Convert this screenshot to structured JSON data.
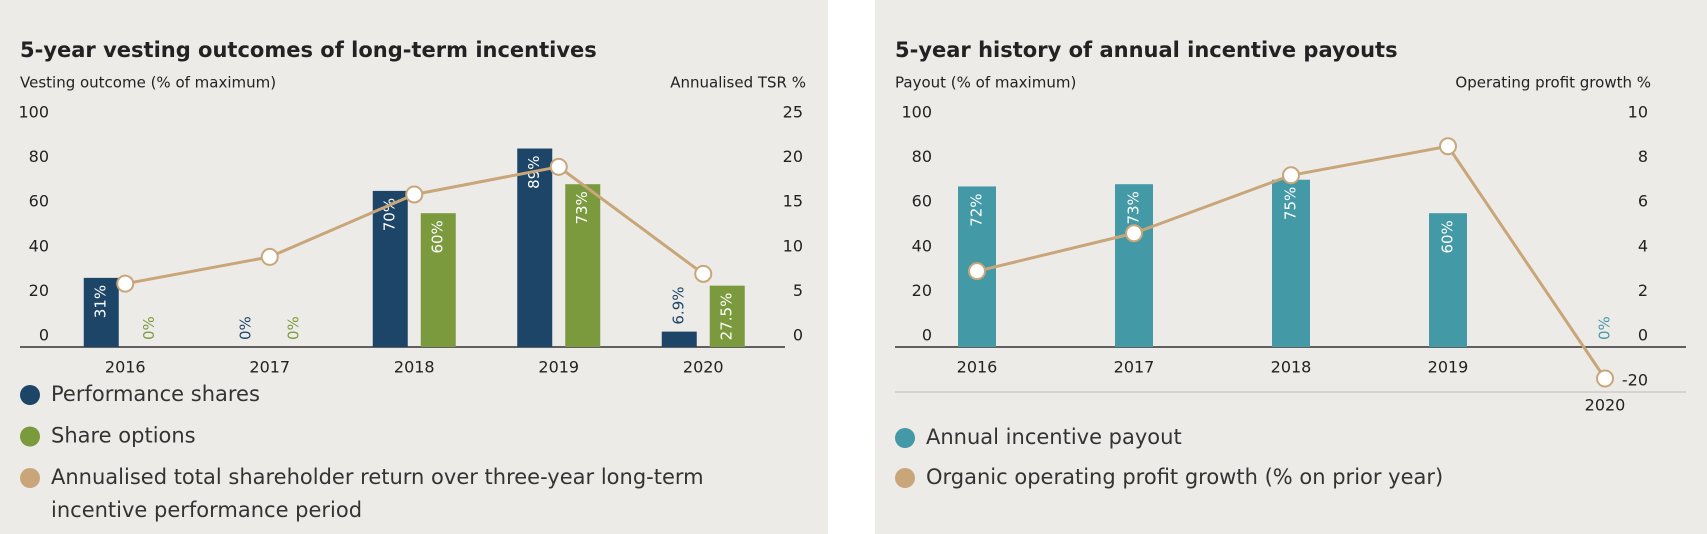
{
  "chart_data": [
    {
      "type": "bar",
      "title": "5-year vesting outcomes of long-term incentives",
      "y_label": "Vesting outcome (% of maximum)",
      "y2_label": "Annualised TSR %",
      "categories": [
        "2016",
        "2017",
        "2018",
        "2019",
        "2020"
      ],
      "series": [
        {
          "name": "Performance shares",
          "color": "#1c4567",
          "values": [
            31,
            0,
            70,
            89,
            6.9
          ],
          "value_labels": [
            "31%",
            "0%",
            "70%",
            "89%",
            "6.9%"
          ]
        },
        {
          "name": "Share options",
          "color": "#7b9a3e",
          "values": [
            0,
            0,
            60,
            73,
            27.5
          ],
          "value_labels": [
            "0%",
            "0%",
            "60%",
            "73%",
            "27.5%"
          ]
        },
        {
          "name": "Annualised total shareholder return over three-year long-term incentive performance period",
          "type": "line",
          "axis": "y2",
          "color": "#c8a67a",
          "values": [
            7.1,
            10.1,
            17.1,
            20.2,
            8.2
          ]
        }
      ],
      "ylim": [
        0,
        100
      ],
      "yticks": [
        0,
        20,
        40,
        60,
        80,
        100
      ],
      "y2lim": [
        0,
        25
      ],
      "y2ticks": [
        0,
        5,
        10,
        15,
        20,
        25
      ],
      "grid": false
    },
    {
      "type": "bar",
      "title": "5-year history of annual incentive payouts",
      "y_label": "Payout (% of maximum)",
      "y2_label": "Operating profit growth %",
      "categories": [
        "2016",
        "2017",
        "2018",
        "2019",
        "2020"
      ],
      "series": [
        {
          "name": "Annual incentive payout",
          "color": "#4399a5",
          "values": [
            72,
            73,
            75,
            60,
            0
          ],
          "value_labels": [
            "72%",
            "73%",
            "75%",
            "60%",
            "0%"
          ]
        },
        {
          "name": "Organic operating profit growth (% on prior year)",
          "type": "line",
          "axis": "y2",
          "color": "#c8a67a",
          "values": [
            3.4,
            5.1,
            7.7,
            9.0,
            -14
          ]
        }
      ],
      "ylim": [
        0,
        100
      ],
      "yticks": [
        0,
        20,
        40,
        60,
        80,
        100
      ],
      "y2lim": [
        -20,
        10
      ],
      "y2ticks": [
        -20,
        0,
        2,
        4,
        6,
        8,
        10
      ],
      "y2_axis_break": true,
      "grid": false
    }
  ]
}
